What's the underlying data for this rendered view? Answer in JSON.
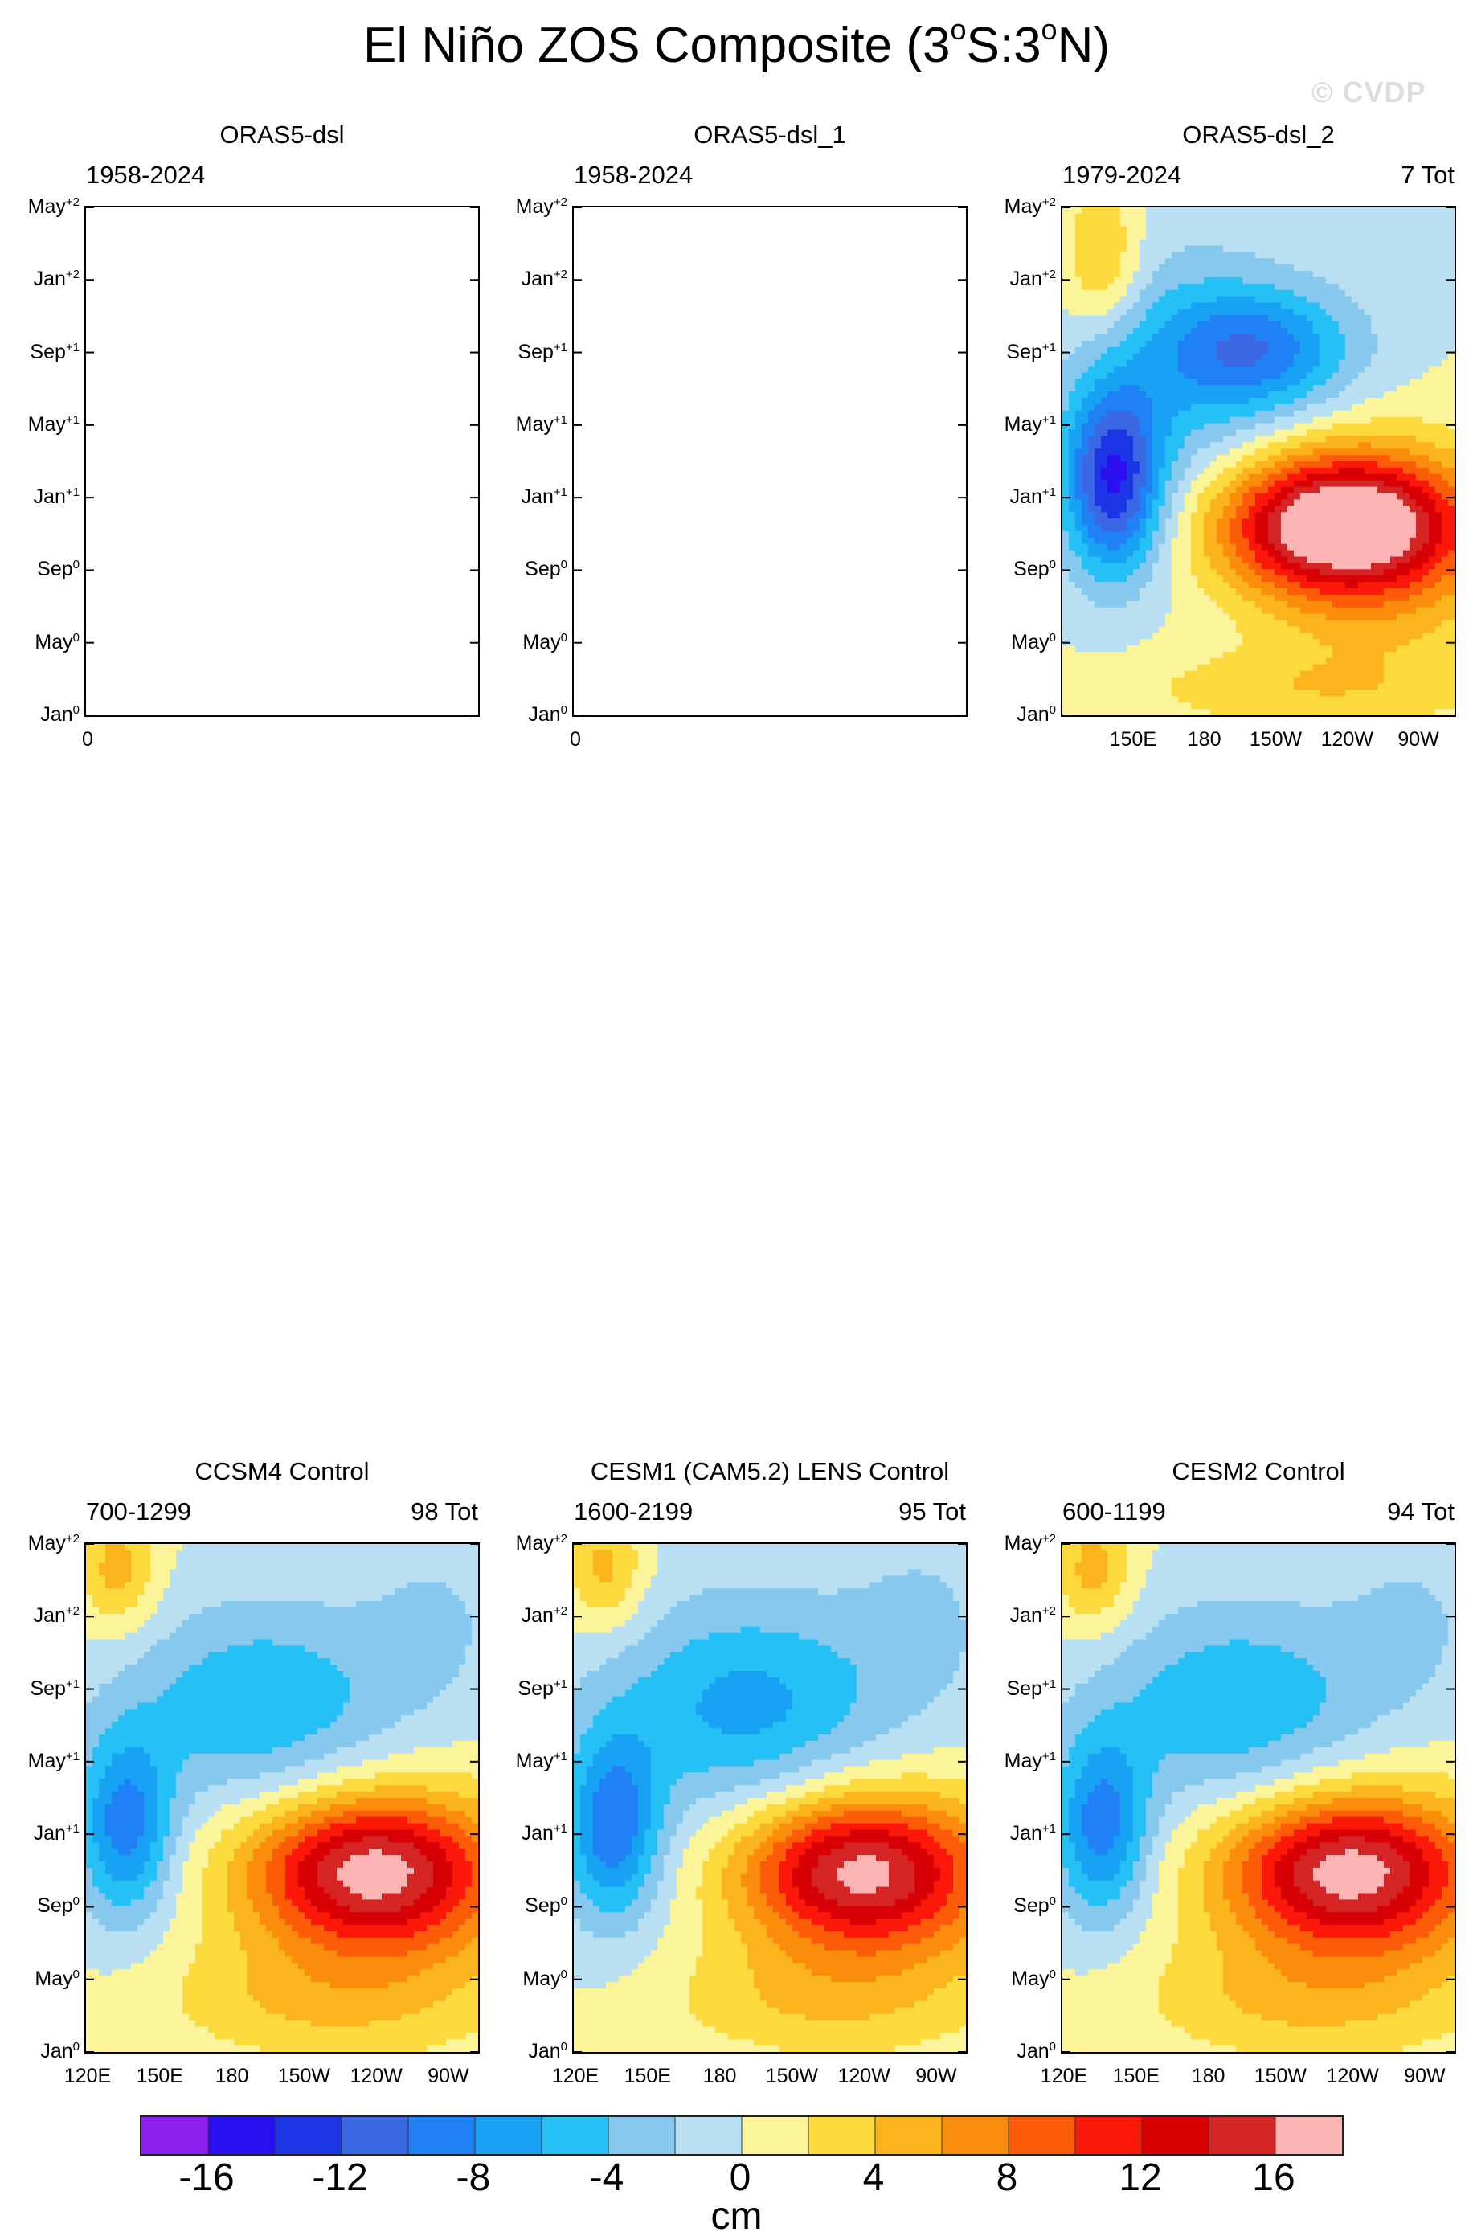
{
  "title": {
    "prefix": "El Niño ZOS Composite (3",
    "sup1": "o",
    "mid": "S:3",
    "sup2": "o",
    "suffix": "N)"
  },
  "watermark": "© CVDP",
  "y_ticks": [
    {
      "month": "May",
      "year": "+2"
    },
    {
      "month": "Jan",
      "year": "+2"
    },
    {
      "month": "Sep",
      "year": "+1"
    },
    {
      "month": "May",
      "year": "+1"
    },
    {
      "month": "Jan",
      "year": "+1"
    },
    {
      "month": "Sep",
      "year": "0"
    },
    {
      "month": "May",
      "year": "0"
    },
    {
      "month": "Jan",
      "year": "0"
    }
  ],
  "panels": [
    {
      "title": "ORAS5-dsl",
      "years": "1958-2024",
      "tot": "",
      "empty": true,
      "x_labels": [
        "0"
      ]
    },
    {
      "title": "ORAS5-dsl_1",
      "years": "1958-2024",
      "tot": "",
      "empty": true,
      "x_labels": [
        "0"
      ]
    },
    {
      "title": "ORAS5-dsl_2",
      "years": "1979-2024",
      "tot": "7 Tot",
      "empty": false,
      "x_labels": [
        "150E",
        "180",
        "150W",
        "120W",
        "90W"
      ]
    },
    {
      "title": "CCSM4 Control",
      "years": "700-1299",
      "tot": "98 Tot",
      "empty": false,
      "x_labels": [
        "120E",
        "150E",
        "180",
        "150W",
        "120W",
        "90W"
      ]
    },
    {
      "title": "CESM1 (CAM5.2) LENS Control",
      "years": "1600-2199",
      "tot": "95 Tot",
      "empty": false,
      "x_labels": [
        "120E",
        "150E",
        "180",
        "150W",
        "120W",
        "90W"
      ]
    },
    {
      "title": "CESM2 Control",
      "years": "600-1199",
      "tot": "94 Tot",
      "empty": false,
      "x_labels": [
        "120E",
        "150E",
        "180",
        "150W",
        "120W",
        "90W"
      ]
    }
  ],
  "colorbar": {
    "units": "cm",
    "labels": [
      "-16",
      "-12",
      "-8",
      "-4",
      "0",
      "4",
      "8",
      "12",
      "16"
    ],
    "colors": [
      "#8a1fee",
      "#2a10f0",
      "#1c36e6",
      "#3a68e2",
      "#2080f6",
      "#18a2f4",
      "#24c0f6",
      "#86c8ee",
      "#b8e0f2",
      "#fcf498",
      "#fcd93c",
      "#fcb41c",
      "#fc8c0c",
      "#fc5c08",
      "#fc1808",
      "#d80004",
      "#d42424",
      "#fcb4b4"
    ]
  }
}
